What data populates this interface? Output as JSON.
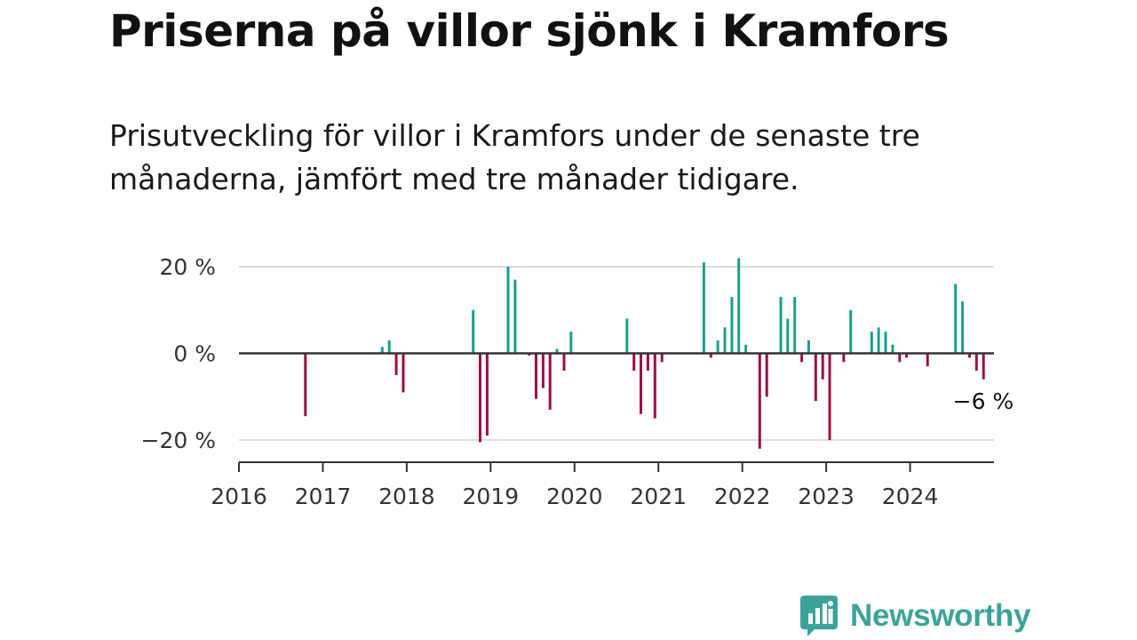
{
  "title": "Priserna på villor sjönk i Kramfors",
  "subtitle": "Prisutveckling för villor i Kramfors under de senaste tre månaderna, jämfört med tre månader tidigare.",
  "brand": {
    "name": "Newsworthy",
    "icon": "newsworthy-logo-icon"
  },
  "colors": {
    "positive": "#1a9e91",
    "negative": "#9b0f45",
    "zero_line": "#333333",
    "grid": "#dddddd",
    "axis": "#333333"
  },
  "chart_data": {
    "type": "bar",
    "x_axis": {
      "type": "date",
      "range": [
        "2016-01",
        "2024-12"
      ],
      "tick_labels": [
        "2016",
        "2017",
        "2018",
        "2019",
        "2020",
        "2021",
        "2022",
        "2023",
        "2024"
      ]
    },
    "y_axis": {
      "range": [
        -25,
        25
      ],
      "ticks": [
        20,
        0,
        -20
      ],
      "tick_labels": [
        "20 %",
        "0 %",
        "−20 %"
      ],
      "unit": "%"
    },
    "grid": true,
    "points": [
      {
        "date": "2016-10",
        "value": -14.5
      },
      {
        "date": "2017-09",
        "value": 1.5
      },
      {
        "date": "2017-10",
        "value": 3
      },
      {
        "date": "2017-11",
        "value": -5
      },
      {
        "date": "2017-12",
        "value": -9
      },
      {
        "date": "2018-10",
        "value": 10
      },
      {
        "date": "2018-11",
        "value": -20.5
      },
      {
        "date": "2018-12",
        "value": -19
      },
      {
        "date": "2019-03",
        "value": 20
      },
      {
        "date": "2019-04",
        "value": 17
      },
      {
        "date": "2019-06",
        "value": -0.5
      },
      {
        "date": "2019-07",
        "value": -10.5
      },
      {
        "date": "2019-08",
        "value": -8
      },
      {
        "date": "2019-09",
        "value": -13
      },
      {
        "date": "2019-10",
        "value": 1
      },
      {
        "date": "2019-11",
        "value": -4
      },
      {
        "date": "2019-12",
        "value": 5
      },
      {
        "date": "2020-08",
        "value": 8
      },
      {
        "date": "2020-09",
        "value": -4
      },
      {
        "date": "2020-10",
        "value": -14
      },
      {
        "date": "2020-11",
        "value": -4
      },
      {
        "date": "2020-12",
        "value": -15
      },
      {
        "date": "2021-01",
        "value": -2
      },
      {
        "date": "2021-07",
        "value": 21
      },
      {
        "date": "2021-08",
        "value": -1
      },
      {
        "date": "2021-09",
        "value": 3
      },
      {
        "date": "2021-10",
        "value": 6
      },
      {
        "date": "2021-11",
        "value": 13
      },
      {
        "date": "2021-12",
        "value": 22
      },
      {
        "date": "2022-01",
        "value": 2
      },
      {
        "date": "2022-03",
        "value": -22
      },
      {
        "date": "2022-04",
        "value": -10
      },
      {
        "date": "2022-06",
        "value": 13
      },
      {
        "date": "2022-07",
        "value": 8
      },
      {
        "date": "2022-08",
        "value": 13
      },
      {
        "date": "2022-09",
        "value": -2
      },
      {
        "date": "2022-10",
        "value": 3
      },
      {
        "date": "2022-11",
        "value": -11
      },
      {
        "date": "2022-12",
        "value": -6
      },
      {
        "date": "2023-01",
        "value": -20
      },
      {
        "date": "2023-03",
        "value": -2
      },
      {
        "date": "2023-04",
        "value": 10
      },
      {
        "date": "2023-07",
        "value": 5
      },
      {
        "date": "2023-08",
        "value": 6
      },
      {
        "date": "2023-09",
        "value": 5
      },
      {
        "date": "2023-10",
        "value": 2
      },
      {
        "date": "2023-11",
        "value": -2
      },
      {
        "date": "2023-12",
        "value": -1
      },
      {
        "date": "2024-03",
        "value": -3
      },
      {
        "date": "2024-07",
        "value": 16
      },
      {
        "date": "2024-08",
        "value": 12
      },
      {
        "date": "2024-09",
        "value": -1
      },
      {
        "date": "2024-10",
        "value": -4
      },
      {
        "date": "2024-11",
        "value": -6
      }
    ],
    "annotations": [
      {
        "date": "2024-11",
        "value": -6,
        "label": "−6 %"
      }
    ]
  }
}
